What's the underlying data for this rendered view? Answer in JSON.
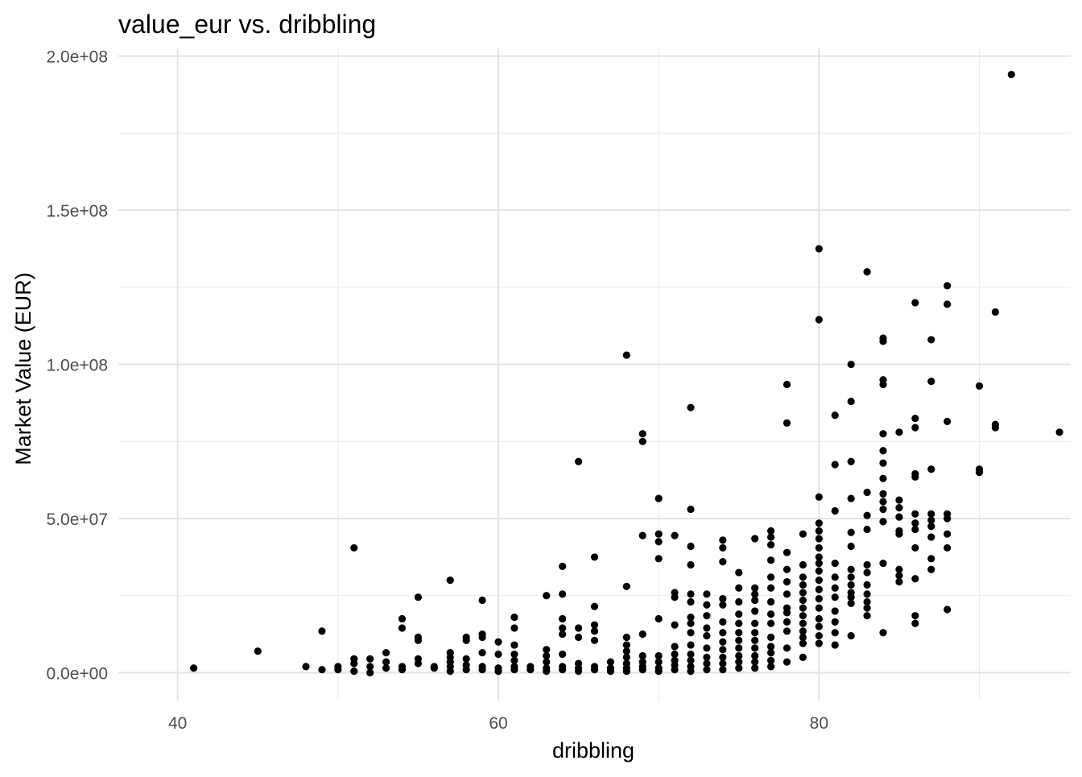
{
  "chart_data": {
    "type": "scatter",
    "title": "value_eur vs. dribbling",
    "xlabel": "dribbling",
    "ylabel": "Market Value (EUR)",
    "xlim": [
      36.3,
      95.7
    ],
    "ylim": [
      -9000000,
      202500000
    ],
    "x_ticks": [
      40,
      60,
      80
    ],
    "x_tick_labels": [
      "40",
      "60",
      "80"
    ],
    "y_ticks": [
      0,
      50000000,
      100000000,
      150000000,
      200000000
    ],
    "y_tick_labels": [
      "0.0e+00",
      "5.0e+07",
      "1.0e+08",
      "1.5e+08",
      "2.0e+08"
    ],
    "grid": true,
    "point_color": "#000000",
    "points": [
      [
        41,
        1500000
      ],
      [
        45,
        7000000
      ],
      [
        48,
        2000000
      ],
      [
        49,
        1000000
      ],
      [
        49,
        13500000
      ],
      [
        50,
        1000000
      ],
      [
        50,
        2000000
      ],
      [
        51,
        500000
      ],
      [
        51,
        3000000
      ],
      [
        51,
        4500000
      ],
      [
        51,
        40500000
      ],
      [
        52,
        0
      ],
      [
        52,
        2000000
      ],
      [
        52,
        4500000
      ],
      [
        53,
        1500000
      ],
      [
        53,
        3500000
      ],
      [
        53,
        6500000
      ],
      [
        54,
        1000000
      ],
      [
        54,
        2000000
      ],
      [
        54,
        14500000
      ],
      [
        54,
        17500000
      ],
      [
        55,
        3000000
      ],
      [
        55,
        4500000
      ],
      [
        55,
        10500000
      ],
      [
        55,
        11500000
      ],
      [
        55,
        24500000
      ],
      [
        56,
        1500000
      ],
      [
        56,
        2000000
      ],
      [
        57,
        500000
      ],
      [
        57,
        2000000
      ],
      [
        57,
        3500000
      ],
      [
        57,
        5000000
      ],
      [
        57,
        6500000
      ],
      [
        57,
        30000000
      ],
      [
        58,
        1000000
      ],
      [
        58,
        2500000
      ],
      [
        58,
        4500000
      ],
      [
        58,
        10500000
      ],
      [
        58,
        11500000
      ],
      [
        59,
        1000000
      ],
      [
        59,
        2000000
      ],
      [
        59,
        6500000
      ],
      [
        59,
        11500000
      ],
      [
        59,
        12500000
      ],
      [
        59,
        23500000
      ],
      [
        60,
        500000
      ],
      [
        60,
        1500000
      ],
      [
        60,
        6000000
      ],
      [
        60,
        10000000
      ],
      [
        61,
        1000000
      ],
      [
        61,
        2000000
      ],
      [
        61,
        4000000
      ],
      [
        61,
        6000000
      ],
      [
        61,
        9000000
      ],
      [
        61,
        14500000
      ],
      [
        61,
        18000000
      ],
      [
        62,
        1000000
      ],
      [
        62,
        2000000
      ],
      [
        63,
        500000
      ],
      [
        63,
        1500000
      ],
      [
        63,
        3500000
      ],
      [
        63,
        5500000
      ],
      [
        63,
        7500000
      ],
      [
        63,
        25000000
      ],
      [
        64,
        1000000
      ],
      [
        64,
        2000000
      ],
      [
        64,
        6000000
      ],
      [
        64,
        12500000
      ],
      [
        64,
        14500000
      ],
      [
        64,
        17500000
      ],
      [
        64,
        25500000
      ],
      [
        64,
        34500000
      ],
      [
        65,
        500000
      ],
      [
        65,
        1500000
      ],
      [
        65,
        3000000
      ],
      [
        65,
        11500000
      ],
      [
        65,
        14500000
      ],
      [
        65,
        68500000
      ],
      [
        66,
        1000000
      ],
      [
        66,
        2000000
      ],
      [
        66,
        10500000
      ],
      [
        66,
        13500000
      ],
      [
        66,
        15500000
      ],
      [
        66,
        21500000
      ],
      [
        66,
        37500000
      ],
      [
        67,
        500000
      ],
      [
        67,
        1500000
      ],
      [
        67,
        3500000
      ],
      [
        68,
        500000
      ],
      [
        68,
        1500000
      ],
      [
        68,
        3000000
      ],
      [
        68,
        5000000
      ],
      [
        68,
        7000000
      ],
      [
        68,
        9000000
      ],
      [
        68,
        11500000
      ],
      [
        68,
        28000000
      ],
      [
        68,
        103000000
      ],
      [
        69,
        1000000
      ],
      [
        69,
        2000000
      ],
      [
        69,
        3500000
      ],
      [
        69,
        5500000
      ],
      [
        69,
        12500000
      ],
      [
        69,
        44500000
      ],
      [
        69,
        75000000
      ],
      [
        69,
        77500000
      ],
      [
        70,
        500000
      ],
      [
        70,
        1500000
      ],
      [
        70,
        3500000
      ],
      [
        70,
        5500000
      ],
      [
        70,
        17500000
      ],
      [
        70,
        37000000
      ],
      [
        70,
        42500000
      ],
      [
        70,
        45000000
      ],
      [
        70,
        56500000
      ],
      [
        71,
        1000000
      ],
      [
        71,
        2500000
      ],
      [
        71,
        4000000
      ],
      [
        71,
        6000000
      ],
      [
        71,
        8500000
      ],
      [
        71,
        15500000
      ],
      [
        71,
        24500000
      ],
      [
        71,
        26000000
      ],
      [
        71,
        44500000
      ],
      [
        72,
        500000
      ],
      [
        72,
        2000000
      ],
      [
        72,
        4000000
      ],
      [
        72,
        6000000
      ],
      [
        72,
        9000000
      ],
      [
        72,
        13000000
      ],
      [
        72,
        16000000
      ],
      [
        72,
        18000000
      ],
      [
        72,
        23000000
      ],
      [
        72,
        25500000
      ],
      [
        72,
        35000000
      ],
      [
        72,
        41000000
      ],
      [
        72,
        53000000
      ],
      [
        72,
        86000000
      ],
      [
        73,
        1000000
      ],
      [
        73,
        3000000
      ],
      [
        73,
        5000000
      ],
      [
        73,
        8000000
      ],
      [
        73,
        12000000
      ],
      [
        73,
        14500000
      ],
      [
        73,
        18500000
      ],
      [
        73,
        22000000
      ],
      [
        73,
        25500000
      ],
      [
        74,
        1000000
      ],
      [
        74,
        3000000
      ],
      [
        74,
        5000000
      ],
      [
        74,
        7500000
      ],
      [
        74,
        10000000
      ],
      [
        74,
        13000000
      ],
      [
        74,
        16500000
      ],
      [
        74,
        22000000
      ],
      [
        74,
        24000000
      ],
      [
        74,
        36000000
      ],
      [
        74,
        40500000
      ],
      [
        74,
        43000000
      ],
      [
        75,
        1500000
      ],
      [
        75,
        3500000
      ],
      [
        75,
        5500000
      ],
      [
        75,
        8000000
      ],
      [
        75,
        10500000
      ],
      [
        75,
        13000000
      ],
      [
        75,
        16000000
      ],
      [
        75,
        19000000
      ],
      [
        75,
        23000000
      ],
      [
        75,
        27500000
      ],
      [
        75,
        32500000
      ],
      [
        76,
        1500000
      ],
      [
        76,
        3500000
      ],
      [
        76,
        5500000
      ],
      [
        76,
        8000000
      ],
      [
        76,
        10500000
      ],
      [
        76,
        13000000
      ],
      [
        76,
        16000000
      ],
      [
        76,
        20000000
      ],
      [
        76,
        23500000
      ],
      [
        76,
        25500000
      ],
      [
        76,
        27500000
      ],
      [
        76,
        43500000
      ],
      [
        77,
        2000000
      ],
      [
        77,
        4000000
      ],
      [
        77,
        6500000
      ],
      [
        77,
        8500000
      ],
      [
        77,
        11500000
      ],
      [
        77,
        16000000
      ],
      [
        77,
        19000000
      ],
      [
        77,
        23000000
      ],
      [
        77,
        27500000
      ],
      [
        77,
        31000000
      ],
      [
        77,
        36500000
      ],
      [
        77,
        41500000
      ],
      [
        77,
        44000000
      ],
      [
        77,
        46000000
      ],
      [
        78,
        3500000
      ],
      [
        78,
        8000000
      ],
      [
        78,
        13500000
      ],
      [
        78,
        16500000
      ],
      [
        78,
        19500000
      ],
      [
        78,
        21000000
      ],
      [
        78,
        25500000
      ],
      [
        78,
        29500000
      ],
      [
        78,
        33500000
      ],
      [
        78,
        39000000
      ],
      [
        78,
        81000000
      ],
      [
        78,
        93500000
      ],
      [
        79,
        5000000
      ],
      [
        79,
        9500000
      ],
      [
        79,
        11500000
      ],
      [
        79,
        13500000
      ],
      [
        79,
        16000000
      ],
      [
        79,
        18500000
      ],
      [
        79,
        21000000
      ],
      [
        79,
        23500000
      ],
      [
        79,
        26000000
      ],
      [
        79,
        28500000
      ],
      [
        79,
        31000000
      ],
      [
        79,
        35000000
      ],
      [
        79,
        45000000
      ],
      [
        80,
        9500000
      ],
      [
        80,
        12000000
      ],
      [
        80,
        15000000
      ],
      [
        80,
        17500000
      ],
      [
        80,
        21000000
      ],
      [
        80,
        24000000
      ],
      [
        80,
        27000000
      ],
      [
        80,
        30000000
      ],
      [
        80,
        33000000
      ],
      [
        80,
        35500000
      ],
      [
        80,
        37500000
      ],
      [
        80,
        40500000
      ],
      [
        80,
        43500000
      ],
      [
        80,
        46000000
      ],
      [
        80,
        48500000
      ],
      [
        80,
        57000000
      ],
      [
        80,
        114500000
      ],
      [
        80,
        137500000
      ],
      [
        81,
        9000000
      ],
      [
        81,
        13000000
      ],
      [
        81,
        16500000
      ],
      [
        81,
        20000000
      ],
      [
        81,
        24500000
      ],
      [
        81,
        27500000
      ],
      [
        81,
        31000000
      ],
      [
        81,
        35500000
      ],
      [
        81,
        52500000
      ],
      [
        81,
        67500000
      ],
      [
        81,
        83500000
      ],
      [
        82,
        12000000
      ],
      [
        82,
        22500000
      ],
      [
        82,
        24500000
      ],
      [
        82,
        26000000
      ],
      [
        82,
        28500000
      ],
      [
        82,
        31000000
      ],
      [
        82,
        33500000
      ],
      [
        82,
        41000000
      ],
      [
        82,
        45500000
      ],
      [
        82,
        56500000
      ],
      [
        82,
        68500000
      ],
      [
        82,
        88000000
      ],
      [
        82,
        100000000
      ],
      [
        83,
        18500000
      ],
      [
        83,
        21000000
      ],
      [
        83,
        23000000
      ],
      [
        83,
        25500000
      ],
      [
        83,
        28500000
      ],
      [
        83,
        32500000
      ],
      [
        83,
        35000000
      ],
      [
        83,
        46500000
      ],
      [
        83,
        51000000
      ],
      [
        83,
        58500000
      ],
      [
        83,
        130000000
      ],
      [
        84,
        13000000
      ],
      [
        84,
        35500000
      ],
      [
        84,
        49000000
      ],
      [
        84,
        53000000
      ],
      [
        84,
        55500000
      ],
      [
        84,
        58000000
      ],
      [
        84,
        63000000
      ],
      [
        84,
        68000000
      ],
      [
        84,
        72000000
      ],
      [
        84,
        77500000
      ],
      [
        84,
        93500000
      ],
      [
        84,
        95000000
      ],
      [
        84,
        107500000
      ],
      [
        84,
        108500000
      ],
      [
        85,
        29500000
      ],
      [
        85,
        31500000
      ],
      [
        85,
        33500000
      ],
      [
        85,
        45000000
      ],
      [
        85,
        46000000
      ],
      [
        85,
        50500000
      ],
      [
        85,
        53500000
      ],
      [
        85,
        56000000
      ],
      [
        85,
        78000000
      ],
      [
        86,
        16000000
      ],
      [
        86,
        18500000
      ],
      [
        86,
        30500000
      ],
      [
        86,
        40500000
      ],
      [
        86,
        46500000
      ],
      [
        86,
        48500000
      ],
      [
        86,
        51500000
      ],
      [
        86,
        63500000
      ],
      [
        86,
        64500000
      ],
      [
        86,
        79500000
      ],
      [
        86,
        82500000
      ],
      [
        86,
        120000000
      ],
      [
        87,
        33500000
      ],
      [
        87,
        37000000
      ],
      [
        87,
        44000000
      ],
      [
        87,
        47500000
      ],
      [
        87,
        49500000
      ],
      [
        87,
        51500000
      ],
      [
        87,
        66000000
      ],
      [
        87,
        94500000
      ],
      [
        87,
        108000000
      ],
      [
        88,
        20500000
      ],
      [
        88,
        40500000
      ],
      [
        88,
        45000000
      ],
      [
        88,
        50000000
      ],
      [
        88,
        51500000
      ],
      [
        88,
        81500000
      ],
      [
        88,
        119500000
      ],
      [
        88,
        125500000
      ],
      [
        90,
        65000000
      ],
      [
        90,
        66000000
      ],
      [
        90,
        93000000
      ],
      [
        91,
        79500000
      ],
      [
        91,
        80500000
      ],
      [
        91,
        117000000
      ],
      [
        92,
        194000000
      ],
      [
        95,
        78000000
      ]
    ]
  }
}
